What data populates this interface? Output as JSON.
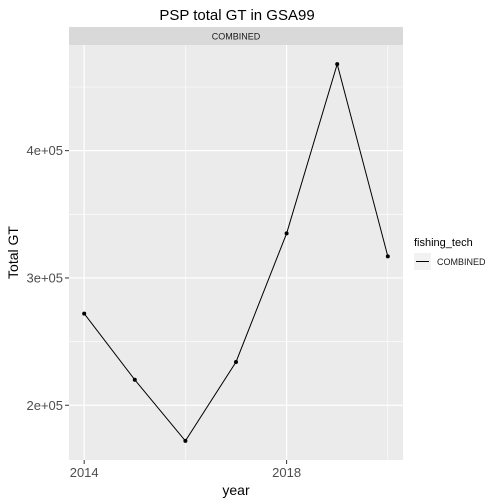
{
  "chart_data": {
    "type": "line",
    "title": "PSP total GT in GSA99",
    "facet_label": "COMBINED",
    "xlabel": "year",
    "ylabel": "Total GT",
    "x": [
      2014,
      2015,
      2016,
      2017,
      2018,
      2019,
      2020
    ],
    "series": [
      {
        "name": "COMBINED",
        "values": [
          272000,
          220000,
          172000,
          234000,
          335000,
          468000,
          317000
        ]
      }
    ],
    "x_ticks": [
      2014,
      2018
    ],
    "x_tick_labels": [
      "2014",
      "2018"
    ],
    "x_minor_ticks": [
      2016,
      2020
    ],
    "y_ticks": [
      200000,
      300000,
      400000
    ],
    "y_tick_labels": [
      "2e+05",
      "3e+05",
      "4e+05"
    ],
    "y_minor_ticks": [
      250000,
      350000,
      450000
    ],
    "xlim": [
      2013.7,
      2020.3
    ],
    "ylim": [
      157000,
      483000
    ],
    "legend": {
      "title": "fishing_tech",
      "placement": "right"
    },
    "grid": true,
    "colors": {
      "panel_bg": "#ebebeb",
      "strip_bg": "#d9d9d9",
      "grid_major": "#ffffff",
      "line": "#000000"
    }
  }
}
